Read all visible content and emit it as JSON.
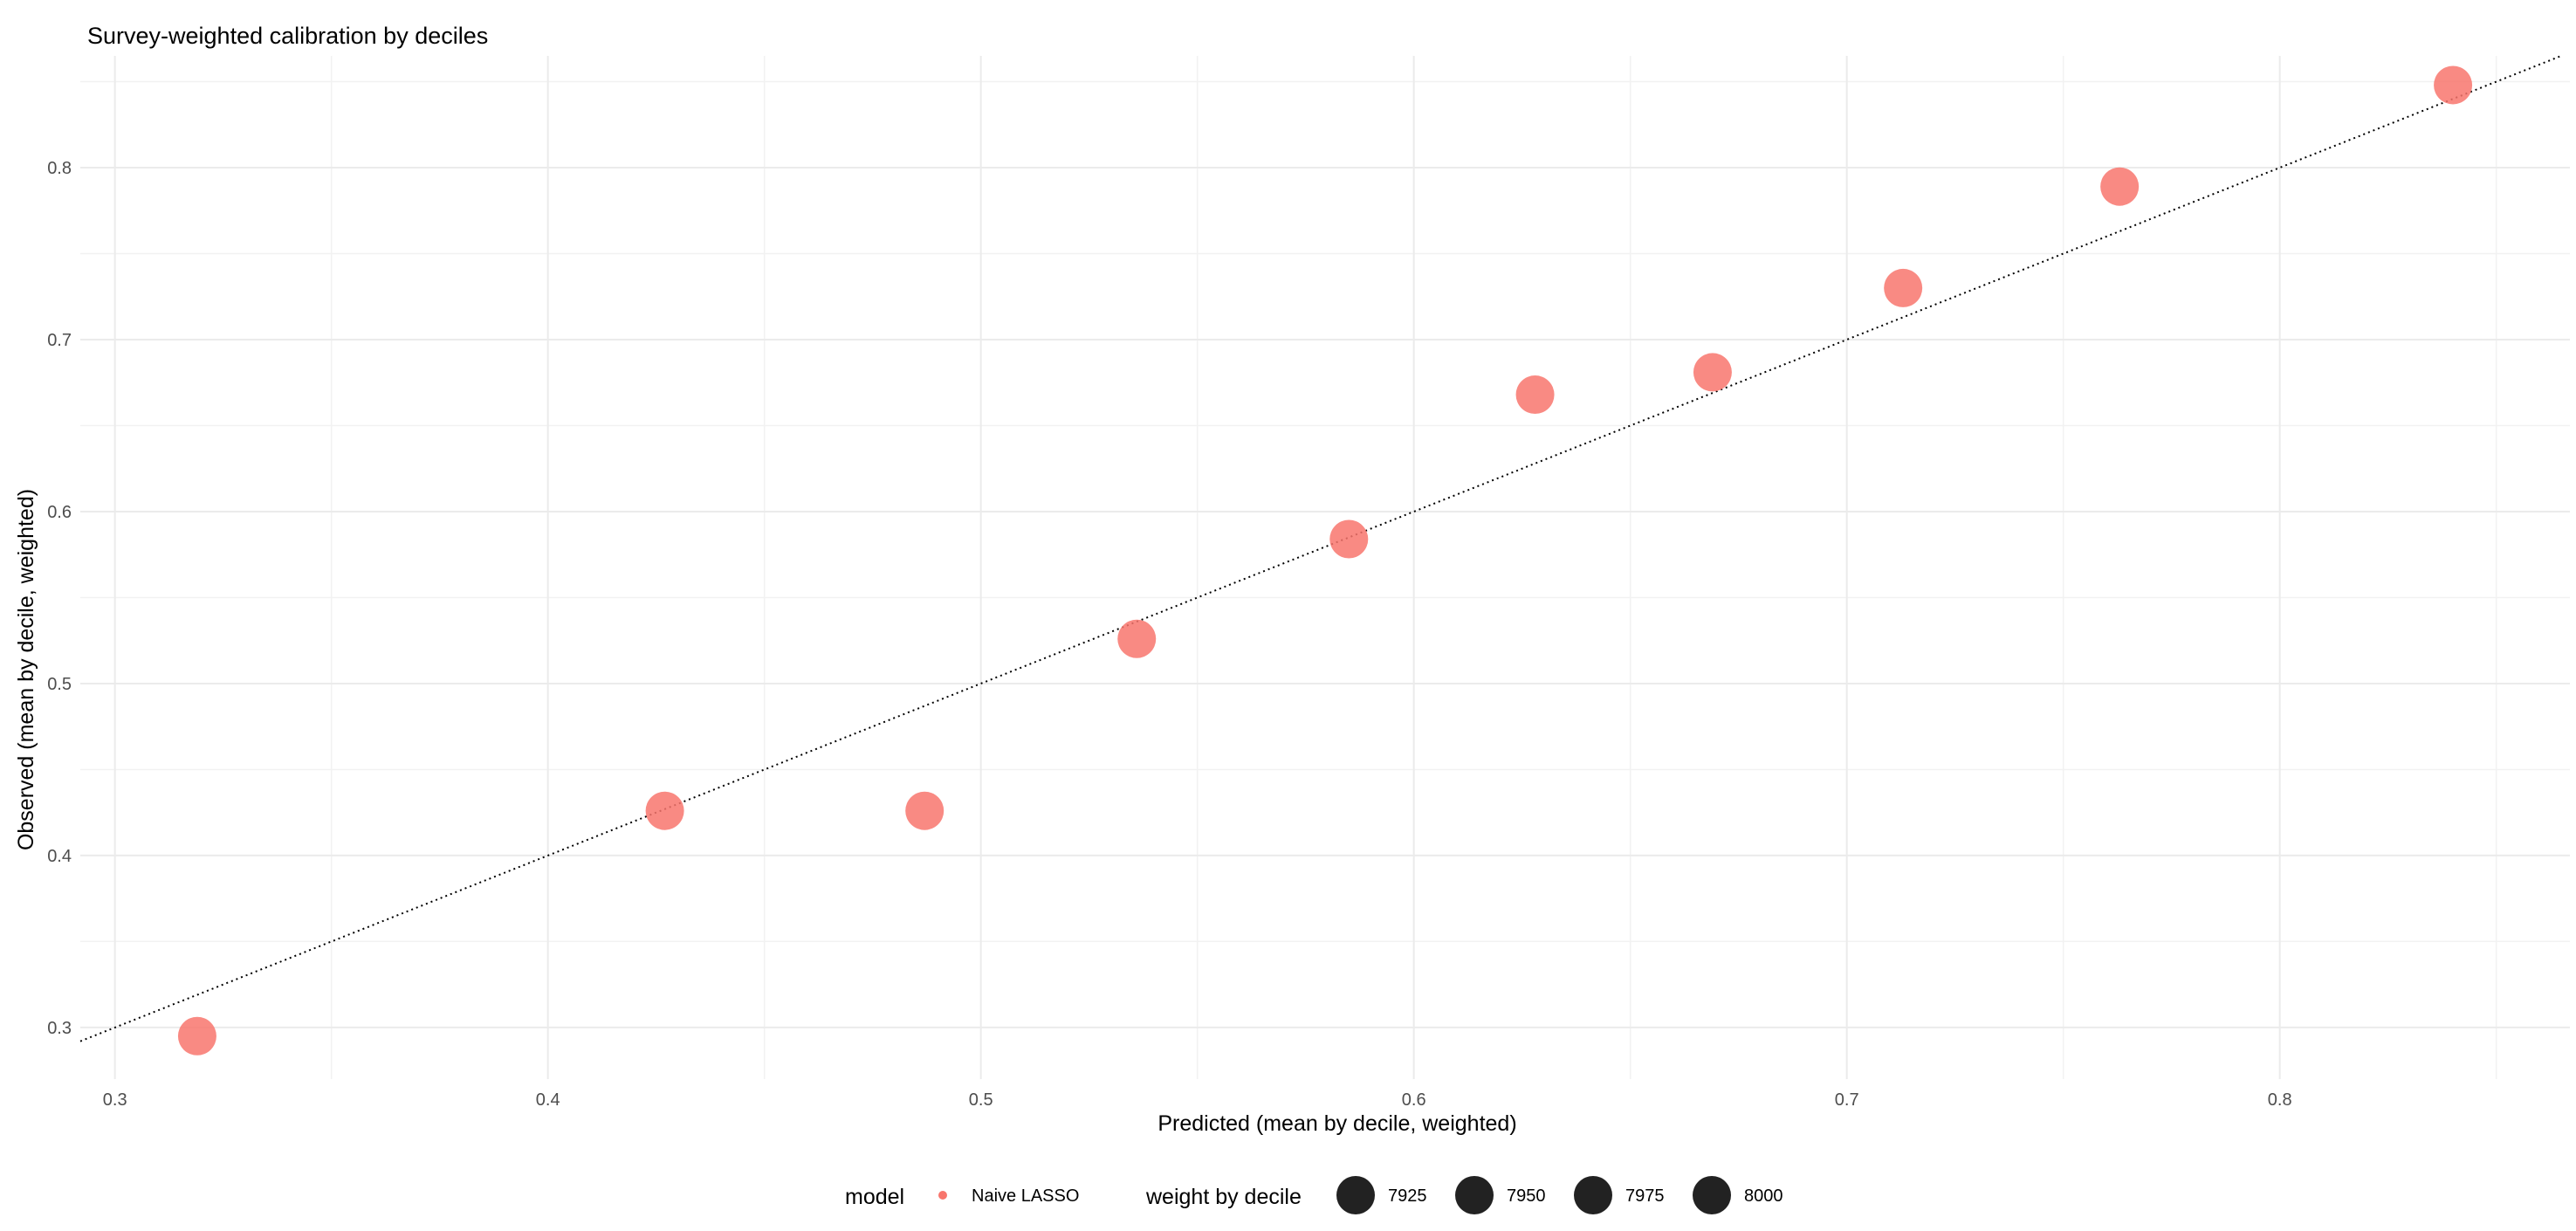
{
  "chart_data": {
    "type": "scatter",
    "title": "Survey-weighted calibration by deciles",
    "xlabel": "Predicted (mean by decile, weighted)",
    "ylabel": "Observed (mean by decile, weighted)",
    "xlim": [
      0.292,
      0.867
    ],
    "ylim": [
      0.27,
      0.865
    ],
    "x_ticks": [
      0.3,
      0.4,
      0.5,
      0.6,
      0.7,
      0.8
    ],
    "y_ticks": [
      0.3,
      0.4,
      0.5,
      0.6,
      0.7,
      0.8
    ],
    "x_tick_labels": [
      "0.3",
      "0.4",
      "0.5",
      "0.6",
      "0.7",
      "0.8"
    ],
    "y_tick_labels": [
      "0.3",
      "0.4",
      "0.5",
      "0.6",
      "0.7",
      "0.8"
    ],
    "grid": true,
    "reference_line": {
      "style": "dotted",
      "slope": 1,
      "intercept": 0
    },
    "series": [
      {
        "name": "Naive LASSO",
        "color": "#F8766D",
        "x": [
          0.319,
          0.427,
          0.487,
          0.536,
          0.585,
          0.628,
          0.669,
          0.713,
          0.763,
          0.84
        ],
        "y": [
          0.295,
          0.426,
          0.426,
          0.526,
          0.584,
          0.668,
          0.681,
          0.73,
          0.789,
          0.848
        ]
      }
    ],
    "legend": {
      "placement": "bottom",
      "color": {
        "title": "model",
        "entries": [
          {
            "label": "Naive LASSO",
            "color": "#F8766D"
          }
        ]
      },
      "size": {
        "title": "weight by decile",
        "entries": [
          {
            "label": "7925",
            "value": 7925
          },
          {
            "label": "7950",
            "value": 7950
          },
          {
            "label": "7975",
            "value": 7975
          },
          {
            "label": "8000",
            "value": 8000
          }
        ],
        "color": "#222222"
      }
    }
  }
}
